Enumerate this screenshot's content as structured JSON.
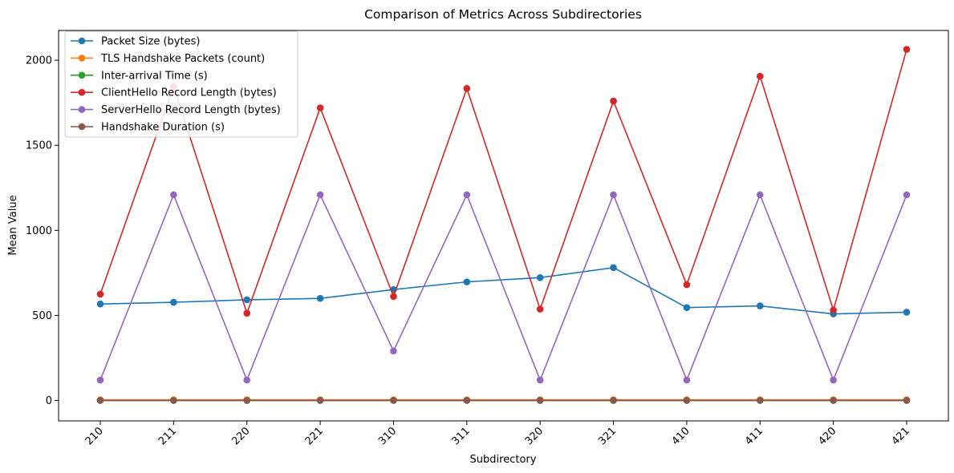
{
  "chart_data": {
    "type": "line",
    "title": "Comparison of Metrics Across Subdirectories",
    "xlabel": "Subdirectory",
    "ylabel": "Mean Value",
    "categories": [
      "210",
      "211",
      "220",
      "221",
      "310",
      "311",
      "320",
      "321",
      "410",
      "411",
      "420",
      "421"
    ],
    "ylim": [
      -120,
      2175
    ],
    "yticks": [
      0,
      500,
      1000,
      1500,
      2000
    ],
    "grid": false,
    "legend_position": "top-left",
    "series": [
      {
        "name": "Packet Size (bytes)",
        "color": "#1f77b4",
        "values": [
          567,
          577,
          592,
          600,
          652,
          697,
          722,
          781,
          546,
          556,
          509,
          519
        ]
      },
      {
        "name": "TLS Handshake Packets (count)",
        "color": "#ff7f0e",
        "values": [
          4,
          4,
          4,
          4,
          4,
          4,
          4,
          4,
          4,
          4,
          4,
          4
        ]
      },
      {
        "name": "Inter-arrival Time (s)",
        "color": "#2ca02c",
        "values": [
          0.1,
          0.1,
          0.1,
          0.1,
          0.1,
          0.1,
          0.1,
          0.1,
          0.1,
          0.1,
          0.1,
          0.1
        ]
      },
      {
        "name": "ClientHello Record Length (bytes)",
        "color": "#d62728",
        "values": [
          625,
          1846,
          513,
          1720,
          611,
          1834,
          537,
          1760,
          681,
          1906,
          531,
          2064
        ]
      },
      {
        "name": "ServerHello Record Length (bytes)",
        "color": "#9467bd",
        "values": [
          120,
          1209,
          120,
          1209,
          291,
          1209,
          120,
          1209,
          120,
          1209,
          120,
          1209
        ]
      },
      {
        "name": "Handshake Duration (s)",
        "color": "#8c564b",
        "values": [
          0.5,
          0.5,
          0.5,
          0.5,
          0.5,
          0.5,
          0.5,
          0.5,
          0.5,
          0.5,
          0.5,
          0.5
        ]
      }
    ]
  }
}
